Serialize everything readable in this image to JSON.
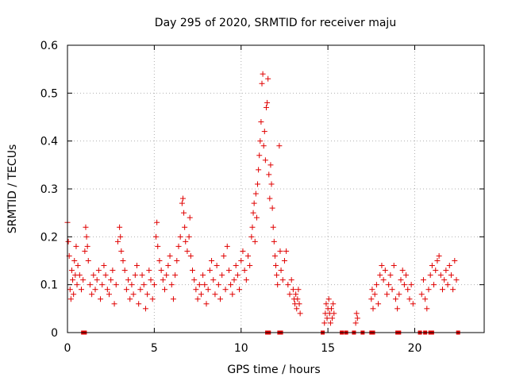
{
  "chart_data": {
    "type": "scatter",
    "title": "Day 295 of 2020, SRMTID for receiver maju",
    "xlabel": "GPS time / hours",
    "ylabel": "SRMTID / TECUs",
    "xlim": [
      0,
      24
    ],
    "ylim": [
      0,
      0.6
    ],
    "xticks": [
      0,
      5,
      10,
      15,
      20
    ],
    "yticks": [
      0,
      0.1,
      0.2,
      0.3,
      0.4,
      0.5,
      0.6
    ],
    "xtick_labels": [
      "0",
      "5",
      "10",
      "15",
      "20"
    ],
    "ytick_labels": [
      "0",
      "0.1",
      "0.2",
      "0.3",
      "0.4",
      "0.5",
      "0.6"
    ],
    "grid": true,
    "marker": "+",
    "color": "#e00000",
    "series": [
      {
        "name": "SRMTID",
        "note": "dense cloud of points; representative sample read from figure",
        "points": [
          [
            0.0,
            0.23
          ],
          [
            0.05,
            0.19
          ],
          [
            0.1,
            0.16
          ],
          [
            0.15,
            0.09
          ],
          [
            0.2,
            0.07
          ],
          [
            0.25,
            0.13
          ],
          [
            0.3,
            0.11
          ],
          [
            0.35,
            0.08
          ],
          [
            0.4,
            0.15
          ],
          [
            0.45,
            0.12
          ],
          [
            0.5,
            0.18
          ],
          [
            0.55,
            0.1
          ],
          [
            0.6,
            0.14
          ],
          [
            0.7,
            0.12
          ],
          [
            0.8,
            0.09
          ],
          [
            0.9,
            0.11
          ],
          [
            1.0,
            0.17
          ],
          [
            1.05,
            0.22
          ],
          [
            1.1,
            0.2
          ],
          [
            1.15,
            0.18
          ],
          [
            1.2,
            0.15
          ],
          [
            1.3,
            0.1
          ],
          [
            1.4,
            0.08
          ],
          [
            1.5,
            0.12
          ],
          [
            1.6,
            0.09
          ],
          [
            1.7,
            0.11
          ],
          [
            1.8,
            0.13
          ],
          [
            1.9,
            0.07
          ],
          [
            2.0,
            0.1
          ],
          [
            2.1,
            0.14
          ],
          [
            2.2,
            0.12
          ],
          [
            2.3,
            0.09
          ],
          [
            2.4,
            0.08
          ],
          [
            2.5,
            0.11
          ],
          [
            2.6,
            0.13
          ],
          [
            2.7,
            0.06
          ],
          [
            2.8,
            0.1
          ],
          [
            2.9,
            0.19
          ],
          [
            3.0,
            0.22
          ],
          [
            3.05,
            0.2
          ],
          [
            3.1,
            0.17
          ],
          [
            3.2,
            0.15
          ],
          [
            3.3,
            0.13
          ],
          [
            3.4,
            0.09
          ],
          [
            3.5,
            0.11
          ],
          [
            3.6,
            0.07
          ],
          [
            3.7,
            0.1
          ],
          [
            3.8,
            0.08
          ],
          [
            3.9,
            0.12
          ],
          [
            4.0,
            0.14
          ],
          [
            4.1,
            0.06
          ],
          [
            4.2,
            0.09
          ],
          [
            4.3,
            0.12
          ],
          [
            4.4,
            0.1
          ],
          [
            4.5,
            0.05
          ],
          [
            4.6,
            0.08
          ],
          [
            4.7,
            0.13
          ],
          [
            4.8,
            0.11
          ],
          [
            4.9,
            0.07
          ],
          [
            5.0,
            0.1
          ],
          [
            5.1,
            0.2
          ],
          [
            5.15,
            0.23
          ],
          [
            5.2,
            0.18
          ],
          [
            5.3,
            0.15
          ],
          [
            5.4,
            0.13
          ],
          [
            5.5,
            0.11
          ],
          [
            5.6,
            0.09
          ],
          [
            5.7,
            0.12
          ],
          [
            5.8,
            0.14
          ],
          [
            5.9,
            0.16
          ],
          [
            6.0,
            0.1
          ],
          [
            6.1,
            0.07
          ],
          [
            6.2,
            0.12
          ],
          [
            6.3,
            0.15
          ],
          [
            6.4,
            0.18
          ],
          [
            6.5,
            0.2
          ],
          [
            6.6,
            0.27
          ],
          [
            6.65,
            0.28
          ],
          [
            6.7,
            0.25
          ],
          [
            6.75,
            0.22
          ],
          [
            6.8,
            0.19
          ],
          [
            6.9,
            0.17
          ],
          [
            7.0,
            0.2
          ],
          [
            7.05,
            0.24
          ],
          [
            7.1,
            0.16
          ],
          [
            7.2,
            0.13
          ],
          [
            7.3,
            0.11
          ],
          [
            7.4,
            0.09
          ],
          [
            7.5,
            0.07
          ],
          [
            7.6,
            0.1
          ],
          [
            7.7,
            0.08
          ],
          [
            7.8,
            0.12
          ],
          [
            7.9,
            0.1
          ],
          [
            8.0,
            0.06
          ],
          [
            8.1,
            0.09
          ],
          [
            8.2,
            0.13
          ],
          [
            8.3,
            0.15
          ],
          [
            8.4,
            0.11
          ],
          [
            8.5,
            0.08
          ],
          [
            8.6,
            0.14
          ],
          [
            8.7,
            0.1
          ],
          [
            8.8,
            0.07
          ],
          [
            8.9,
            0.12
          ],
          [
            9.0,
            0.16
          ],
          [
            9.1,
            0.09
          ],
          [
            9.2,
            0.18
          ],
          [
            9.3,
            0.13
          ],
          [
            9.4,
            0.1
          ],
          [
            9.5,
            0.08
          ],
          [
            9.6,
            0.11
          ],
          [
            9.7,
            0.14
          ],
          [
            9.8,
            0.12
          ],
          [
            9.9,
            0.09
          ],
          [
            10.0,
            0.15
          ],
          [
            10.1,
            0.17
          ],
          [
            10.2,
            0.13
          ],
          [
            10.3,
            0.11
          ],
          [
            10.4,
            0.16
          ],
          [
            10.5,
            0.14
          ],
          [
            10.6,
            0.2
          ],
          [
            10.65,
            0.22
          ],
          [
            10.7,
            0.25
          ],
          [
            10.75,
            0.27
          ],
          [
            10.8,
            0.19
          ],
          [
            10.85,
            0.29
          ],
          [
            10.9,
            0.24
          ],
          [
            10.95,
            0.31
          ],
          [
            11.0,
            0.34
          ],
          [
            11.05,
            0.37
          ],
          [
            11.1,
            0.4
          ],
          [
            11.15,
            0.44
          ],
          [
            11.2,
            0.52
          ],
          [
            11.25,
            0.54
          ],
          [
            11.3,
            0.39
          ],
          [
            11.35,
            0.42
          ],
          [
            11.4,
            0.36
          ],
          [
            11.45,
            0.47
          ],
          [
            11.5,
            0.48
          ],
          [
            11.55,
            0.53
          ],
          [
            11.6,
            0.33
          ],
          [
            11.65,
            0.28
          ],
          [
            11.7,
            0.35
          ],
          [
            11.75,
            0.31
          ],
          [
            11.8,
            0.26
          ],
          [
            11.85,
            0.22
          ],
          [
            11.9,
            0.19
          ],
          [
            11.95,
            0.16
          ],
          [
            12.0,
            0.14
          ],
          [
            12.05,
            0.12
          ],
          [
            12.1,
            0.1
          ],
          [
            12.2,
            0.39
          ],
          [
            12.25,
            0.17
          ],
          [
            12.3,
            0.13
          ],
          [
            12.4,
            0.11
          ],
          [
            12.5,
            0.15
          ],
          [
            12.6,
            0.17
          ],
          [
            12.7,
            0.1
          ],
          [
            12.8,
            0.08
          ],
          [
            12.9,
            0.11
          ],
          [
            13.0,
            0.09
          ],
          [
            13.05,
            0.07
          ],
          [
            13.1,
            0.06
          ],
          [
            13.15,
            0.08
          ],
          [
            13.2,
            0.05
          ],
          [
            13.25,
            0.07
          ],
          [
            13.3,
            0.09
          ],
          [
            13.35,
            0.06
          ],
          [
            13.4,
            0.04
          ],
          [
            14.8,
            0.02
          ],
          [
            14.85,
            0.04
          ],
          [
            14.9,
            0.06
          ],
          [
            14.95,
            0.03
          ],
          [
            15.0,
            0.05
          ],
          [
            15.05,
            0.07
          ],
          [
            15.1,
            0.04
          ],
          [
            15.15,
            0.02
          ],
          [
            15.2,
            0.05
          ],
          [
            15.25,
            0.03
          ],
          [
            15.3,
            0.06
          ],
          [
            15.35,
            0.04
          ],
          [
            16.6,
            0.02
          ],
          [
            16.65,
            0.04
          ],
          [
            16.7,
            0.03
          ],
          [
            17.5,
            0.07
          ],
          [
            17.55,
            0.09
          ],
          [
            17.6,
            0.05
          ],
          [
            17.7,
            0.08
          ],
          [
            17.8,
            0.1
          ],
          [
            17.9,
            0.06
          ],
          [
            18.0,
            0.12
          ],
          [
            18.1,
            0.14
          ],
          [
            18.2,
            0.11
          ],
          [
            18.3,
            0.13
          ],
          [
            18.4,
            0.08
          ],
          [
            18.5,
            0.1
          ],
          [
            18.6,
            0.12
          ],
          [
            18.7,
            0.09
          ],
          [
            18.8,
            0.14
          ],
          [
            18.9,
            0.07
          ],
          [
            19.0,
            0.05
          ],
          [
            19.1,
            0.08
          ],
          [
            19.2,
            0.11
          ],
          [
            19.3,
            0.13
          ],
          [
            19.4,
            0.1
          ],
          [
            19.5,
            0.12
          ],
          [
            19.6,
            0.09
          ],
          [
            19.7,
            0.07
          ],
          [
            19.8,
            0.1
          ],
          [
            19.9,
            0.06
          ],
          [
            20.4,
            0.08
          ],
          [
            20.5,
            0.11
          ],
          [
            20.6,
            0.07
          ],
          [
            20.7,
            0.05
          ],
          [
            20.8,
            0.09
          ],
          [
            20.9,
            0.12
          ],
          [
            21.0,
            0.14
          ],
          [
            21.1,
            0.1
          ],
          [
            21.2,
            0.13
          ],
          [
            21.3,
            0.15
          ],
          [
            21.4,
            0.16
          ],
          [
            21.5,
            0.12
          ],
          [
            21.6,
            0.09
          ],
          [
            21.7,
            0.11
          ],
          [
            21.8,
            0.13
          ],
          [
            21.9,
            0.1
          ],
          [
            22.0,
            0.14
          ],
          [
            22.1,
            0.12
          ],
          [
            22.2,
            0.09
          ],
          [
            22.3,
            0.15
          ],
          [
            22.4,
            0.11
          ]
        ]
      }
    ],
    "zero_points_x": [
      0.9,
      1.0,
      11.5,
      11.6,
      12.2,
      12.3,
      14.7,
      15.8,
      16.05,
      16.5,
      17.0,
      17.5,
      17.6,
      19.0,
      19.1,
      20.3,
      20.6,
      20.9,
      21.0,
      22.5
    ]
  }
}
